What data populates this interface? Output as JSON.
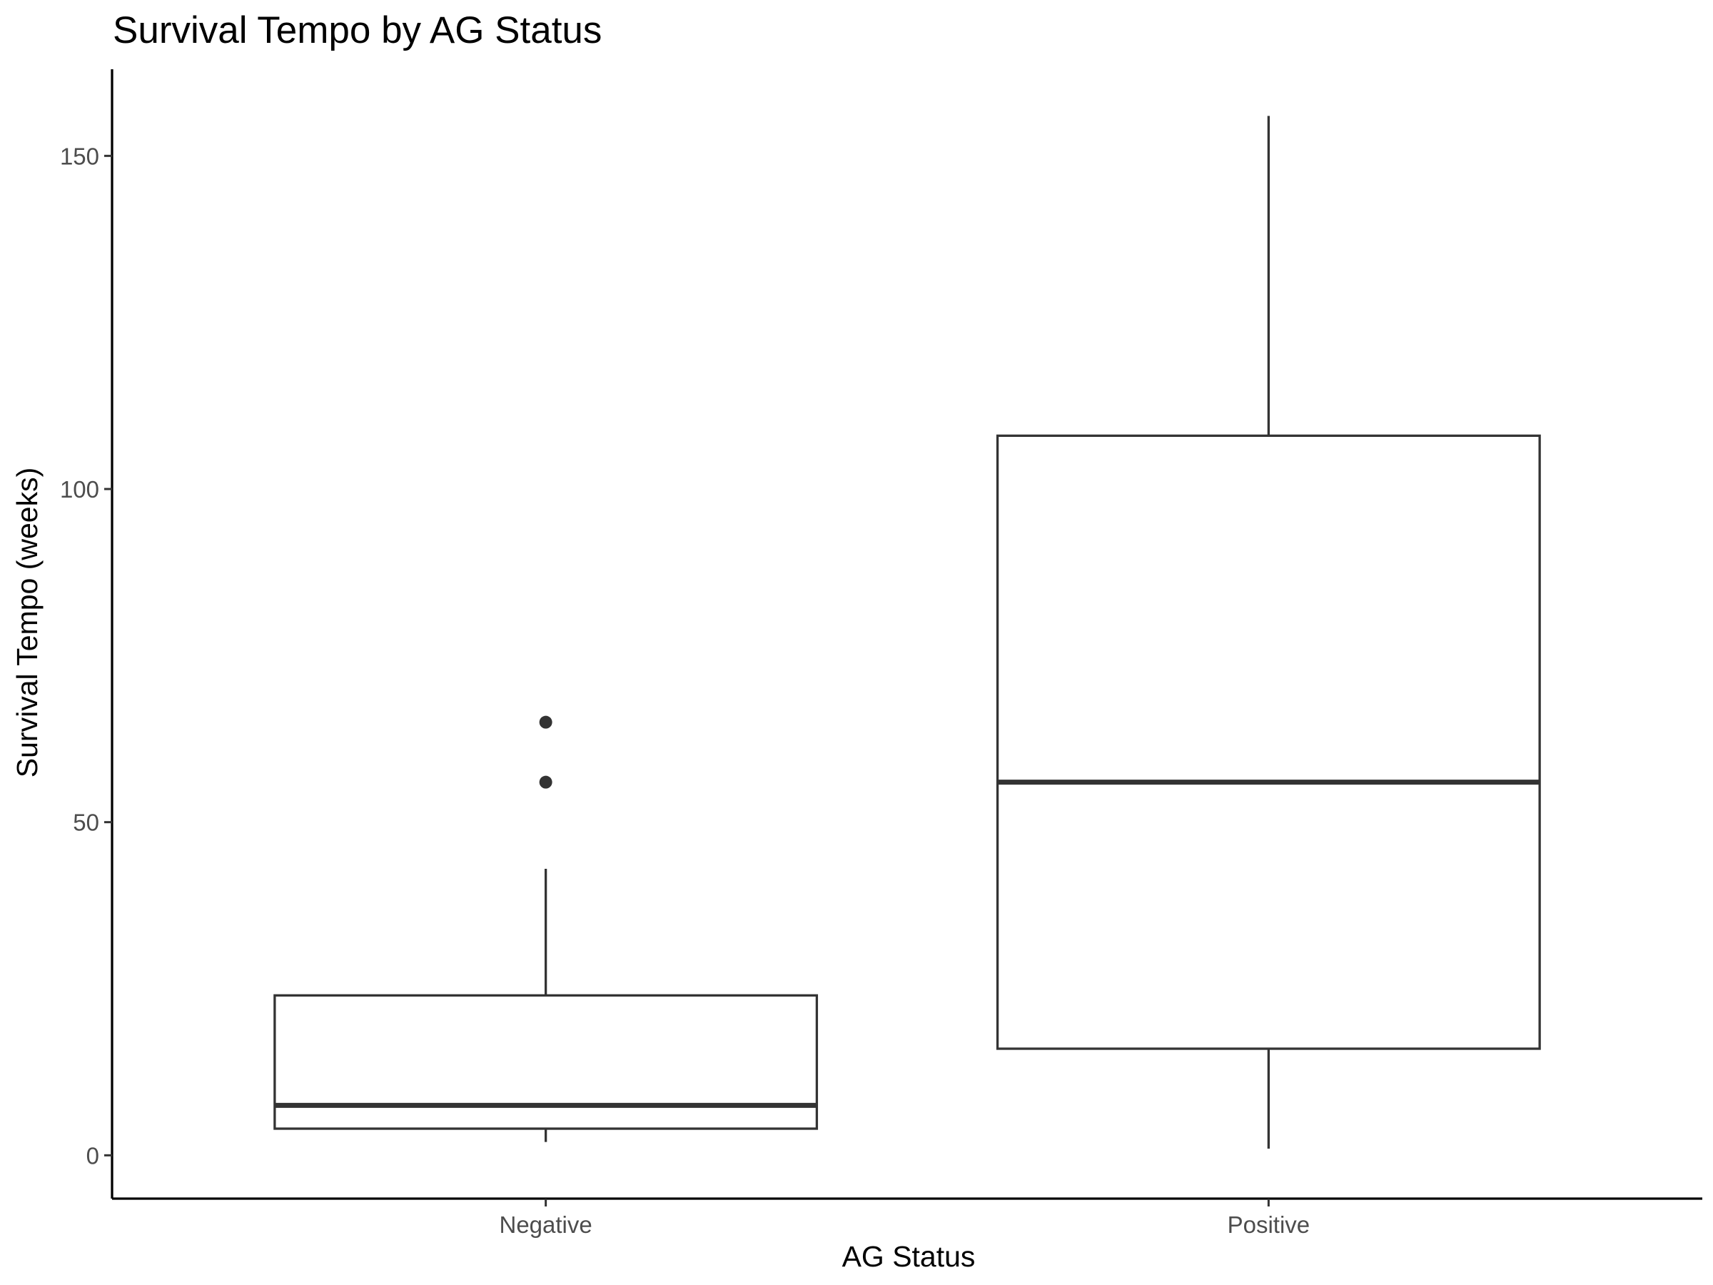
{
  "chart_data": {
    "type": "boxplot",
    "title": "Survival Tempo by AG Status",
    "xlabel": "AG Status",
    "ylabel": "Survival Tempo (weeks)",
    "ylim": [
      -6.5,
      163
    ],
    "yticks": [
      0,
      50,
      100,
      150
    ],
    "grid": false,
    "categories": [
      "Negative",
      "Positive"
    ],
    "boxes": [
      {
        "category": "Negative",
        "whisker_low": 2,
        "q1": 4,
        "median": 7.5,
        "q3": 24,
        "whisker_high": 43,
        "outliers": [
          56,
          65
        ]
      },
      {
        "category": "Positive",
        "whisker_low": 1,
        "q1": 16,
        "median": 56,
        "q3": 108,
        "whisker_high": 156,
        "outliers": []
      }
    ]
  }
}
